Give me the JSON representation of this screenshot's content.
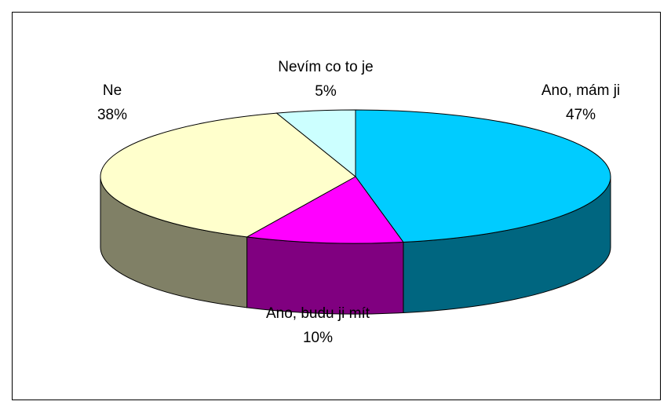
{
  "chart_data": {
    "type": "pie3d",
    "categories": [
      "Ano, mám ji",
      "Ano, budu ji mít",
      "Ne",
      "Nevím co to je"
    ],
    "values": [
      47,
      10,
      38,
      5
    ],
    "value_labels": [
      "47%",
      "10%",
      "38%",
      "5%"
    ],
    "colors": [
      "#00ccff",
      "#ff00ff",
      "#ffffcc",
      "#ccffff"
    ],
    "side_colors": [
      "#006680",
      "#800080",
      "#808066",
      "#668080"
    ]
  }
}
